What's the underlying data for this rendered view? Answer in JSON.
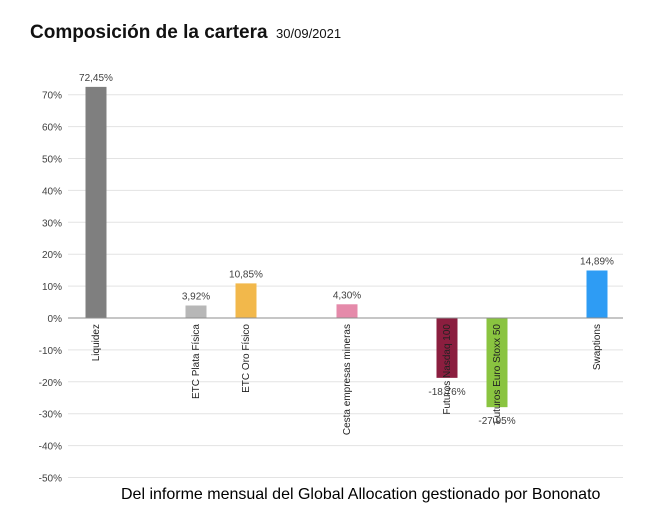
{
  "header": {
    "title": "Composición de la cartera",
    "date": "30/09/2021"
  },
  "chart_data": {
    "type": "bar",
    "title": "Composición de la cartera",
    "subtitle": "30/09/2021",
    "xlabel": "",
    "ylabel": "",
    "ylim": [
      -50,
      70
    ],
    "yticks": [
      70,
      60,
      50,
      40,
      30,
      20,
      10,
      0,
      -10,
      -20,
      -30,
      -40,
      -50
    ],
    "ytick_labels": [
      "70%",
      "60%",
      "50%",
      "40%",
      "30%",
      "20%",
      "10%",
      "0%",
      "-10%",
      "-20%",
      "-30%",
      "-40%",
      "-50%"
    ],
    "grid": true,
    "categories": [
      "Liquidez",
      "ETC Plata Física",
      "ETC Oro Físico",
      "Cesta empresas mineras",
      "Futuros Nasdaq 100",
      "Futuros Euro Stoxx 50",
      "Swaptions"
    ],
    "values": [
      72.45,
      3.92,
      10.85,
      4.3,
      -18.76,
      -27.95,
      14.89
    ],
    "data_labels": [
      "72,45%",
      "3,92%",
      "10,85%",
      "4,30%",
      "-18,76%",
      "-27,95%",
      "14,89%"
    ],
    "colors": [
      "#7f7f7f",
      "#b7b7b7",
      "#f2b84b",
      "#e58aaa",
      "#8b1e3f",
      "#8ac440",
      "#2e9cf4"
    ]
  },
  "footer": {
    "text": "Del informe mensual del Global Allocation gestionado por Bononato"
  }
}
